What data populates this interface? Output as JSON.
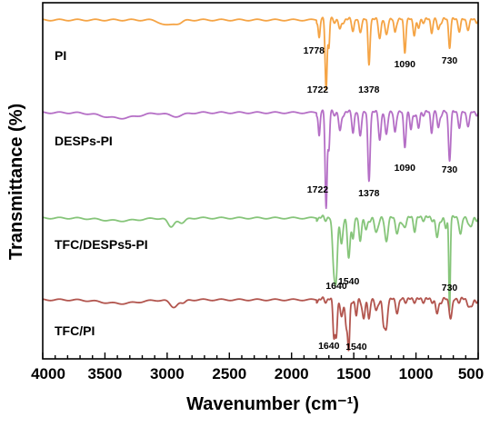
{
  "chart_data": {
    "type": "line",
    "xlabel": "Wavenumber (cm⁻¹)",
    "ylabel": "Transmittance (%)",
    "xlim": [
      4000,
      500
    ],
    "x_reversed": true,
    "x_ticks": [
      4000,
      3500,
      3000,
      2500,
      2000,
      1500,
      1000,
      500
    ],
    "y_ticks_shown": false,
    "grid": false,
    "legend": "none (series labelled next to curves)",
    "series": [
      {
        "name": "PI",
        "color": "#F5A445",
        "peaks": [
          {
            "x": 1778,
            "label": "1778"
          },
          {
            "x": 1722,
            "label": "1722"
          },
          {
            "x": 1378,
            "label": "1378"
          },
          {
            "x": 1090,
            "label": "1090"
          },
          {
            "x": 730,
            "label": "730"
          }
        ]
      },
      {
        "name": "DESPs-PI",
        "color": "#B56FC6",
        "peaks": [
          {
            "x": 1722,
            "label": "1722"
          },
          {
            "x": 1378,
            "label": "1378"
          },
          {
            "x": 1090,
            "label": "1090"
          },
          {
            "x": 730,
            "label": "730"
          }
        ]
      },
      {
        "name": "TFC/DESPs5-PI",
        "color": "#86C57A",
        "peaks": [
          {
            "x": 1640,
            "label": "1640"
          },
          {
            "x": 1540,
            "label": "1540"
          },
          {
            "x": 730,
            "label": "730"
          }
        ]
      },
      {
        "name": "TFC/PI",
        "color": "#B2554E",
        "peaks": [
          {
            "x": 1640,
            "label": "1640"
          },
          {
            "x": 1540,
            "label": "1540"
          }
        ]
      }
    ]
  }
}
